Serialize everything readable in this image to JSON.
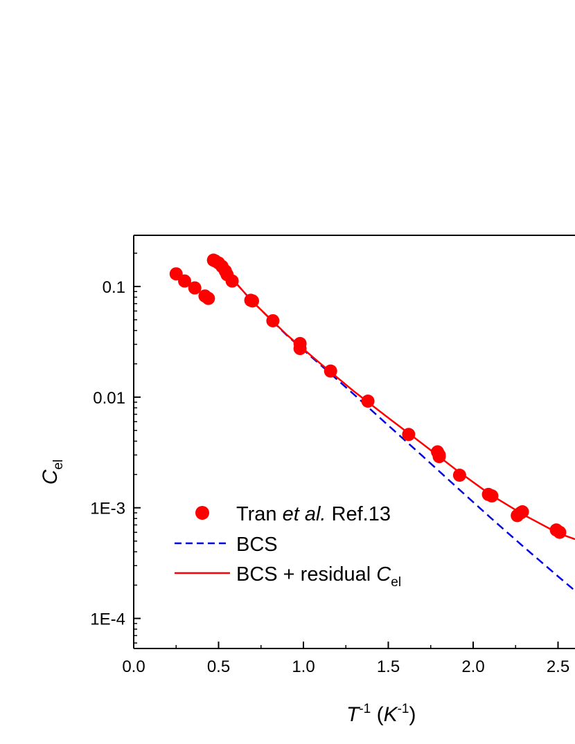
{
  "chart_data": {
    "type": "scatter",
    "xlabel": {
      "symbol": "T",
      "sup": "-1",
      "unit_open": " (",
      "unit": "K",
      "unit_sup": "-1",
      "unit_close": ")"
    },
    "ylabel": {
      "symbol": "C",
      "sub": "el"
    },
    "x_ticks": [
      "0.0",
      "0.5",
      "1.0",
      "1.5",
      "2.0",
      "2.5"
    ],
    "x_tick_values": [
      0.0,
      0.5,
      1.0,
      1.5,
      2.0,
      2.5
    ],
    "y_ticks": [
      "0.1",
      "0.01",
      "1E-3",
      "1E-4"
    ],
    "y_tick_values": [
      0.1,
      0.01,
      0.001,
      0.0001
    ],
    "xlim": [
      0.0,
      2.6
    ],
    "ylim": [
      5.35e-05,
      0.29
    ],
    "y_scale": "log",
    "legend_position": "bottom-left",
    "series": [
      {
        "name": "Tran et al. Ref.13",
        "name_parts": {
          "pre": "Tran ",
          "italic": "et al.",
          "post": " Ref.13"
        },
        "kind": "scatter",
        "color": "#ff0000",
        "points": [
          [
            0.25,
            0.13
          ],
          [
            0.3,
            0.112
          ],
          [
            0.36,
            0.097
          ],
          [
            0.42,
            0.082
          ],
          [
            0.44,
            0.078
          ],
          [
            0.47,
            0.173
          ],
          [
            0.48,
            0.17
          ],
          [
            0.5,
            0.163
          ],
          [
            0.52,
            0.152
          ],
          [
            0.54,
            0.138
          ],
          [
            0.55,
            0.128
          ],
          [
            0.58,
            0.112
          ],
          [
            0.69,
            0.075
          ],
          [
            0.7,
            0.074
          ],
          [
            0.82,
            0.049
          ],
          [
            0.98,
            0.0305
          ],
          [
            0.98,
            0.0275
          ],
          [
            1.16,
            0.0172
          ],
          [
            1.38,
            0.0092
          ],
          [
            1.62,
            0.0046
          ],
          [
            1.79,
            0.0032
          ],
          [
            1.8,
            0.003
          ],
          [
            1.8,
            0.0029
          ],
          [
            1.92,
            0.00197
          ],
          [
            2.09,
            0.00132
          ],
          [
            2.11,
            0.00128
          ],
          [
            2.26,
            0.00085
          ],
          [
            2.28,
            0.0009
          ],
          [
            2.29,
            0.00092
          ],
          [
            2.49,
            0.00063
          ],
          [
            2.51,
            0.0006
          ]
        ]
      },
      {
        "name": "BCS",
        "kind": "line",
        "style": "dashed",
        "color": "#0000dd",
        "x": [
          0.55,
          0.7,
          0.9,
          1.1,
          1.3,
          1.5,
          1.7,
          1.9,
          2.1,
          2.3,
          2.5,
          2.6
        ],
        "y": [
          0.132,
          0.073,
          0.0365,
          0.0196,
          0.0105,
          0.00555,
          0.00295,
          0.00155,
          0.00082,
          0.00044,
          0.00024,
          0.000178
        ]
      },
      {
        "name": "BCS + residual Cel",
        "name_parts": {
          "pre": "BCS + residual ",
          "italic": "C",
          "sub": "el"
        },
        "kind": "line",
        "style": "solid",
        "color": "#ff0000",
        "x": [
          0.55,
          0.7,
          0.9,
          1.1,
          1.3,
          1.5,
          1.7,
          1.9,
          2.1,
          2.3,
          2.5,
          2.6
        ],
        "y": [
          0.132,
          0.073,
          0.0368,
          0.0201,
          0.0112,
          0.0065,
          0.0038,
          0.0022,
          0.00132,
          0.00086,
          0.00059,
          0.00052
        ]
      }
    ]
  }
}
